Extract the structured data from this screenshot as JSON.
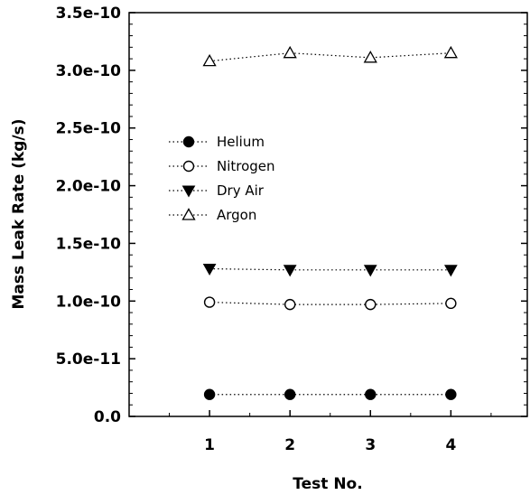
{
  "chart_data": {
    "type": "scatter",
    "title": "",
    "xlabel": "Test No.",
    "ylabel": "Mass Leak Rate (kg/s)",
    "x": [
      1,
      2,
      3,
      4
    ],
    "xlim": [
      0.0,
      4.95
    ],
    "ylim": [
      0,
      3.5e-10
    ],
    "x_ticks": [
      {
        "value": 1,
        "label": "1"
      },
      {
        "value": 2,
        "label": "2"
      },
      {
        "value": 3,
        "label": "3"
      },
      {
        "value": 4,
        "label": "4"
      }
    ],
    "y_ticks": [
      {
        "value": 0,
        "label": "0.0"
      },
      {
        "value": 5e-11,
        "label": "5.0e-11"
      },
      {
        "value": 1e-10,
        "label": "1.0e-10"
      },
      {
        "value": 1.5e-10,
        "label": "1.5e-10"
      },
      {
        "value": 2e-10,
        "label": "2.0e-10"
      },
      {
        "value": 2.5e-10,
        "label": "2.5e-10"
      },
      {
        "value": 3e-10,
        "label": "3.0e-10"
      },
      {
        "value": 3.5e-10,
        "label": "3.5e-10"
      }
    ],
    "grid": false,
    "legend_position": "center-left",
    "series": [
      {
        "name": "Helium",
        "marker": "circle-filled",
        "values": [
          1.9e-11,
          1.9e-11,
          1.9e-11,
          1.9e-11
        ]
      },
      {
        "name": "Nitrogen",
        "marker": "circle-open",
        "values": [
          9.9e-11,
          9.7e-11,
          9.7e-11,
          9.8e-11
        ]
      },
      {
        "name": "Dry Air",
        "marker": "triangle-down-filled",
        "values": [
          1.28e-10,
          1.27e-10,
          1.27e-10,
          1.27e-10
        ]
      },
      {
        "name": "Argon",
        "marker": "triangle-up-open",
        "values": [
          3.08e-10,
          3.15e-10,
          3.11e-10,
          3.15e-10
        ]
      }
    ]
  }
}
